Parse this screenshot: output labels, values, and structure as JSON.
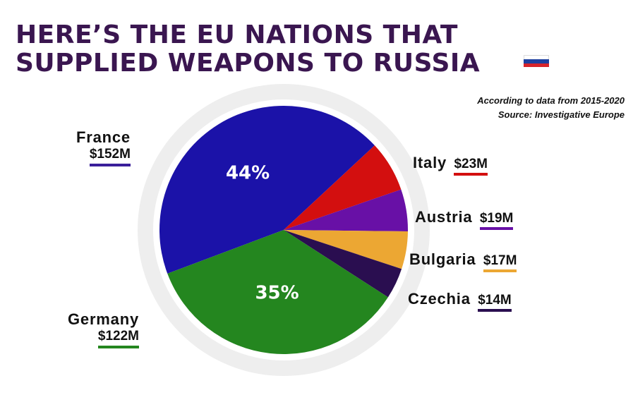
{
  "title": {
    "line1": "HERE’S THE EU NATIONS THAT",
    "line2": "SUPPLIED WEAPONS TO RUSSIA"
  },
  "subtitle": {
    "line1": "According to data from 2015-2020",
    "line2": "Source: Investigative Europe"
  },
  "flag": {
    "icon": "russia-flag-icon",
    "colors": [
      "#ffffff",
      "#1c3fa0",
      "#d5232b"
    ]
  },
  "chart_data": {
    "type": "pie",
    "slices": [
      {
        "label": "France",
        "value": 152,
        "value_label": "$152M",
        "pct_label": "44%",
        "color": "#1b12a8"
      },
      {
        "label": "Italy",
        "value": 23,
        "value_label": "$23M",
        "pct_label": "",
        "color": "#d30f0f"
      },
      {
        "label": "Austria",
        "value": 19,
        "value_label": "$19M",
        "pct_label": "",
        "color": "#6810a6"
      },
      {
        "label": "Bulgaria",
        "value": 17,
        "value_label": "$17M",
        "pct_label": "",
        "color": "#eca733"
      },
      {
        "label": "Czechia",
        "value": 14,
        "value_label": "$14M",
        "pct_label": "",
        "color": "#2a0e50"
      },
      {
        "label": "Germany",
        "value": 122,
        "value_label": "$122M",
        "pct_label": "35%",
        "color": "#24861f"
      }
    ]
  }
}
